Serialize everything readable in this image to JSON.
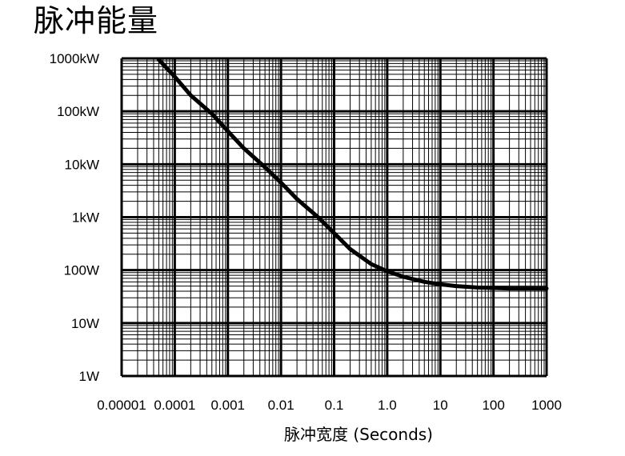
{
  "chart_data": {
    "type": "line",
    "title": "脉冲能量",
    "xlabel": "脉冲宽度 (Seconds)",
    "ylabel": "",
    "x_scale": "log",
    "y_scale": "log",
    "xlim": [
      1e-05,
      1000
    ],
    "ylim": [
      1,
      1000000
    ],
    "grid": true,
    "x_ticks": [
      {
        "value": 1e-05,
        "label": "0.00001"
      },
      {
        "value": 0.0001,
        "label": "0.0001"
      },
      {
        "value": 0.001,
        "label": "0.001"
      },
      {
        "value": 0.01,
        "label": "0.01"
      },
      {
        "value": 0.1,
        "label": "0.1"
      },
      {
        "value": 1,
        "label": "1.0"
      },
      {
        "value": 10,
        "label": "10"
      },
      {
        "value": 100,
        "label": "100"
      },
      {
        "value": 1000,
        "label": "1000"
      }
    ],
    "y_ticks": [
      {
        "value": 1,
        "label": "1W"
      },
      {
        "value": 10,
        "label": "10W"
      },
      {
        "value": 100,
        "label": "100W"
      },
      {
        "value": 1000,
        "label": "1kW"
      },
      {
        "value": 10000,
        "label": "10kW"
      },
      {
        "value": 100000,
        "label": "100kW"
      },
      {
        "value": 1000000,
        "label": "1000kW"
      }
    ],
    "series": [
      {
        "x": [
          5e-05,
          0.0001,
          0.0002,
          0.0005,
          0.001,
          0.002,
          0.005,
          0.01,
          0.02,
          0.05,
          0.1,
          0.2,
          0.5,
          1,
          2,
          5,
          10,
          20,
          50,
          100,
          200,
          500,
          1000
        ],
        "y": [
          950000,
          450000,
          200000,
          90000,
          42000,
          20000,
          8800,
          4500,
          2200,
          1000,
          500,
          250,
          130,
          95,
          75,
          60,
          54,
          50,
          47,
          46,
          45,
          45,
          45
        ]
      }
    ]
  }
}
